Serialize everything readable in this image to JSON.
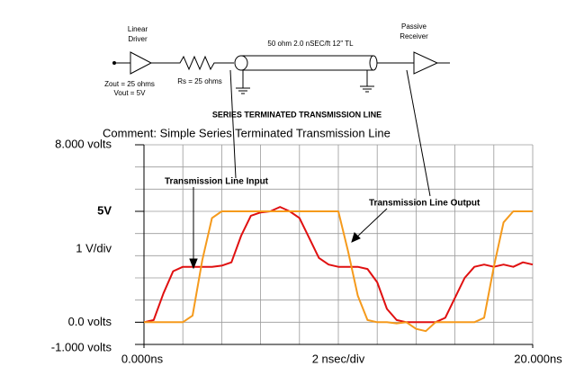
{
  "schematic": {
    "driver_label": [
      "Linear",
      "Driver"
    ],
    "driver_params": [
      "Zout = 25 ohms",
      "Vout = 5V"
    ],
    "resistor_label": "Rs = 25 ohms",
    "line_label": "50 ohm 2.0 nSEC/ft 12\" TL",
    "receiver_label": [
      "Passive",
      "Receiver"
    ],
    "caption": "SERIES TERMINATED TRANSMISSION LINE"
  },
  "chart_data": {
    "type": "line",
    "title": "Comment: Simple Series Terminated Transmission Line",
    "xlabel": "2 nsec/div",
    "ylabel": "1 V/div",
    "x": [
      0,
      0.5,
      1,
      1.5,
      2,
      2.5,
      3,
      3.5,
      4,
      4.5,
      5,
      5.5,
      6,
      6.5,
      7,
      7.5,
      8,
      8.5,
      9,
      9.5,
      10,
      10.5,
      11,
      11.5,
      12,
      12.5,
      13,
      13.5,
      14,
      14.5,
      15,
      15.5,
      16,
      16.5,
      17,
      17.5,
      18,
      18.5,
      19,
      19.5,
      20
    ],
    "series": [
      {
        "name": "Transmission Line Input",
        "color": "#e01010",
        "values": [
          0,
          0.1,
          1.3,
          2.3,
          2.5,
          2.5,
          2.5,
          2.5,
          2.55,
          2.7,
          3.9,
          4.8,
          4.95,
          5.0,
          5.2,
          5.0,
          4.7,
          3.8,
          2.9,
          2.6,
          2.5,
          2.5,
          2.5,
          2.4,
          1.8,
          0.6,
          0.1,
          0,
          0,
          0,
          0,
          0.2,
          1.1,
          2.0,
          2.5,
          2.6,
          2.5,
          2.6,
          2.5,
          2.7,
          2.6
        ]
      },
      {
        "name": "Transmission Line Output",
        "color": "#f59a1c",
        "values": [
          0,
          0,
          0,
          0,
          0,
          0.3,
          2.8,
          4.7,
          5.0,
          5.0,
          5.0,
          5.0,
          5.0,
          5.0,
          5.0,
          5.0,
          5.0,
          5.0,
          5.0,
          5.0,
          5.0,
          3.2,
          1.2,
          0.1,
          0,
          0,
          -0.05,
          0,
          -0.3,
          -0.4,
          0,
          0,
          0,
          0,
          0,
          0.2,
          2.5,
          4.5,
          5.0,
          5.0,
          5.0
        ]
      }
    ],
    "xlim": [
      0,
      20
    ],
    "ylim": [
      -1,
      8
    ],
    "xticks": [
      {
        "value": 0,
        "label": "0.000ns"
      },
      {
        "value": 20,
        "label": "20.000ns"
      }
    ],
    "yticks": [
      {
        "value": 8,
        "label": "8.000 volts"
      },
      {
        "value": 5,
        "label": "5V"
      },
      {
        "value": 0,
        "label": "0.0 volts"
      },
      {
        "value": -1,
        "label": "-1.000 volts"
      }
    ],
    "xgrid": [
      0,
      2,
      4,
      6,
      8,
      10,
      12,
      14,
      16,
      18,
      20
    ],
    "ygrid": [
      -1,
      0,
      1,
      2,
      3,
      4,
      5,
      6,
      7,
      8
    ],
    "grid": true
  }
}
